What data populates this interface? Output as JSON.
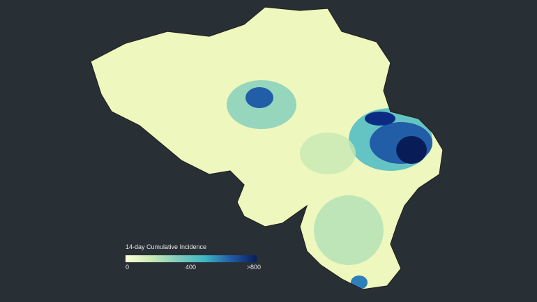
{
  "legend": {
    "title": "14-day Cumulative Incidence",
    "range": [
      0,
      800
    ],
    "ticks": [
      0,
      400,
      {
        "value": 800,
        "label": ">800"
      }
    ],
    "colors": [
      "#ffffd9",
      "#c7e9b4",
      "#7fcdbb",
      "#41b6c4",
      "#225ea8",
      "#081d58"
    ]
  }
}
